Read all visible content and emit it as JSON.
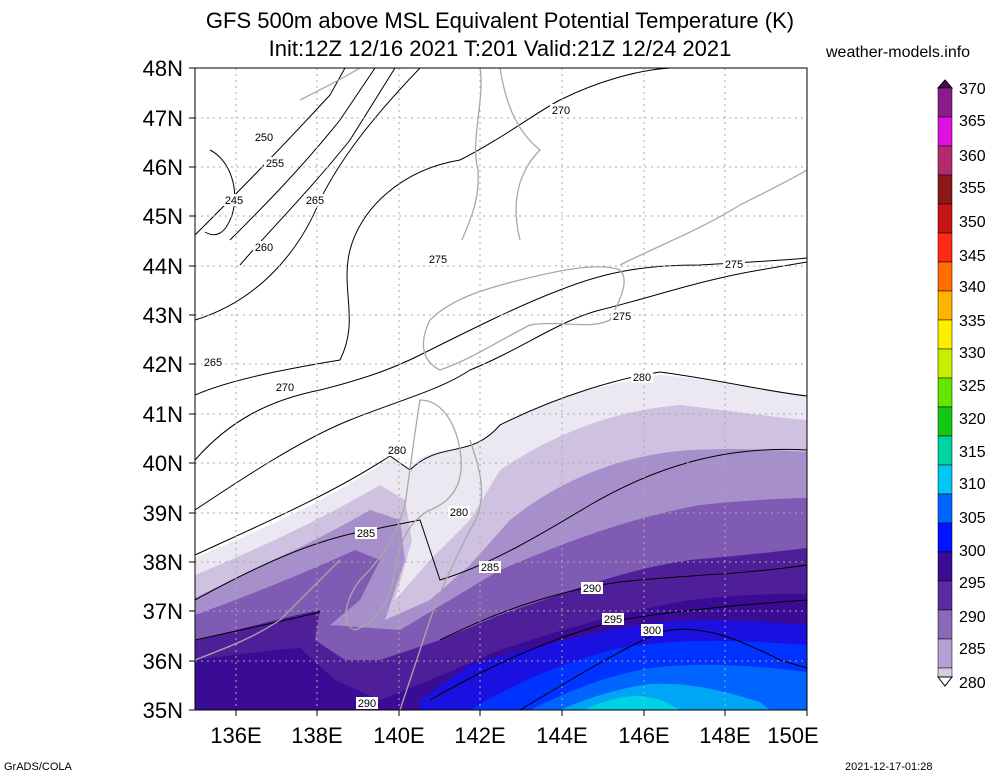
{
  "title": {
    "line1": "GFS 500m above MSL Equivalent Potential Temperature (K)",
    "line2": "Init:12Z 12/16 2021 T:201 Valid:21Z 12/24 2021"
  },
  "site": "weather-models.info",
  "footer": {
    "left": "GrADS/COLA",
    "right": "2021-12-17-01:28"
  },
  "lat_labels": [
    "48N",
    "47N",
    "46N",
    "45N",
    "44N",
    "43N",
    "42N",
    "41N",
    "40N",
    "39N",
    "38N",
    "37N",
    "36N",
    "35N"
  ],
  "lon_labels": [
    "136E",
    "138E",
    "140E",
    "142E",
    "144E",
    "146E",
    "148E",
    "150E"
  ],
  "legend": {
    "values": [
      "370",
      "365",
      "360",
      "355",
      "350",
      "345",
      "340",
      "335",
      "330",
      "325",
      "320",
      "315",
      "310",
      "305",
      "300",
      "295",
      "290",
      "285",
      "280"
    ],
    "colors": [
      "#4a0b5a",
      "#8c1a8c",
      "#e010e0",
      "#b42a6e",
      "#8a1a1a",
      "#c81414",
      "#ff2a14",
      "#ff6e00",
      "#ffb400",
      "#ffee00",
      "#c8f000",
      "#64e600",
      "#14c814",
      "#00d2a0",
      "#00c8f0",
      "#0064ff",
      "#0014ff",
      "#3a0c96",
      "#d6cce4",
      "#ffffff"
    ]
  },
  "contour_labels": [
    "245",
    "250",
    "255",
    "260",
    "265",
    "265",
    "270",
    "270",
    "275",
    "275",
    "275",
    "280",
    "280",
    "280",
    "285",
    "285",
    "290",
    "290",
    "295",
    "300"
  ]
}
